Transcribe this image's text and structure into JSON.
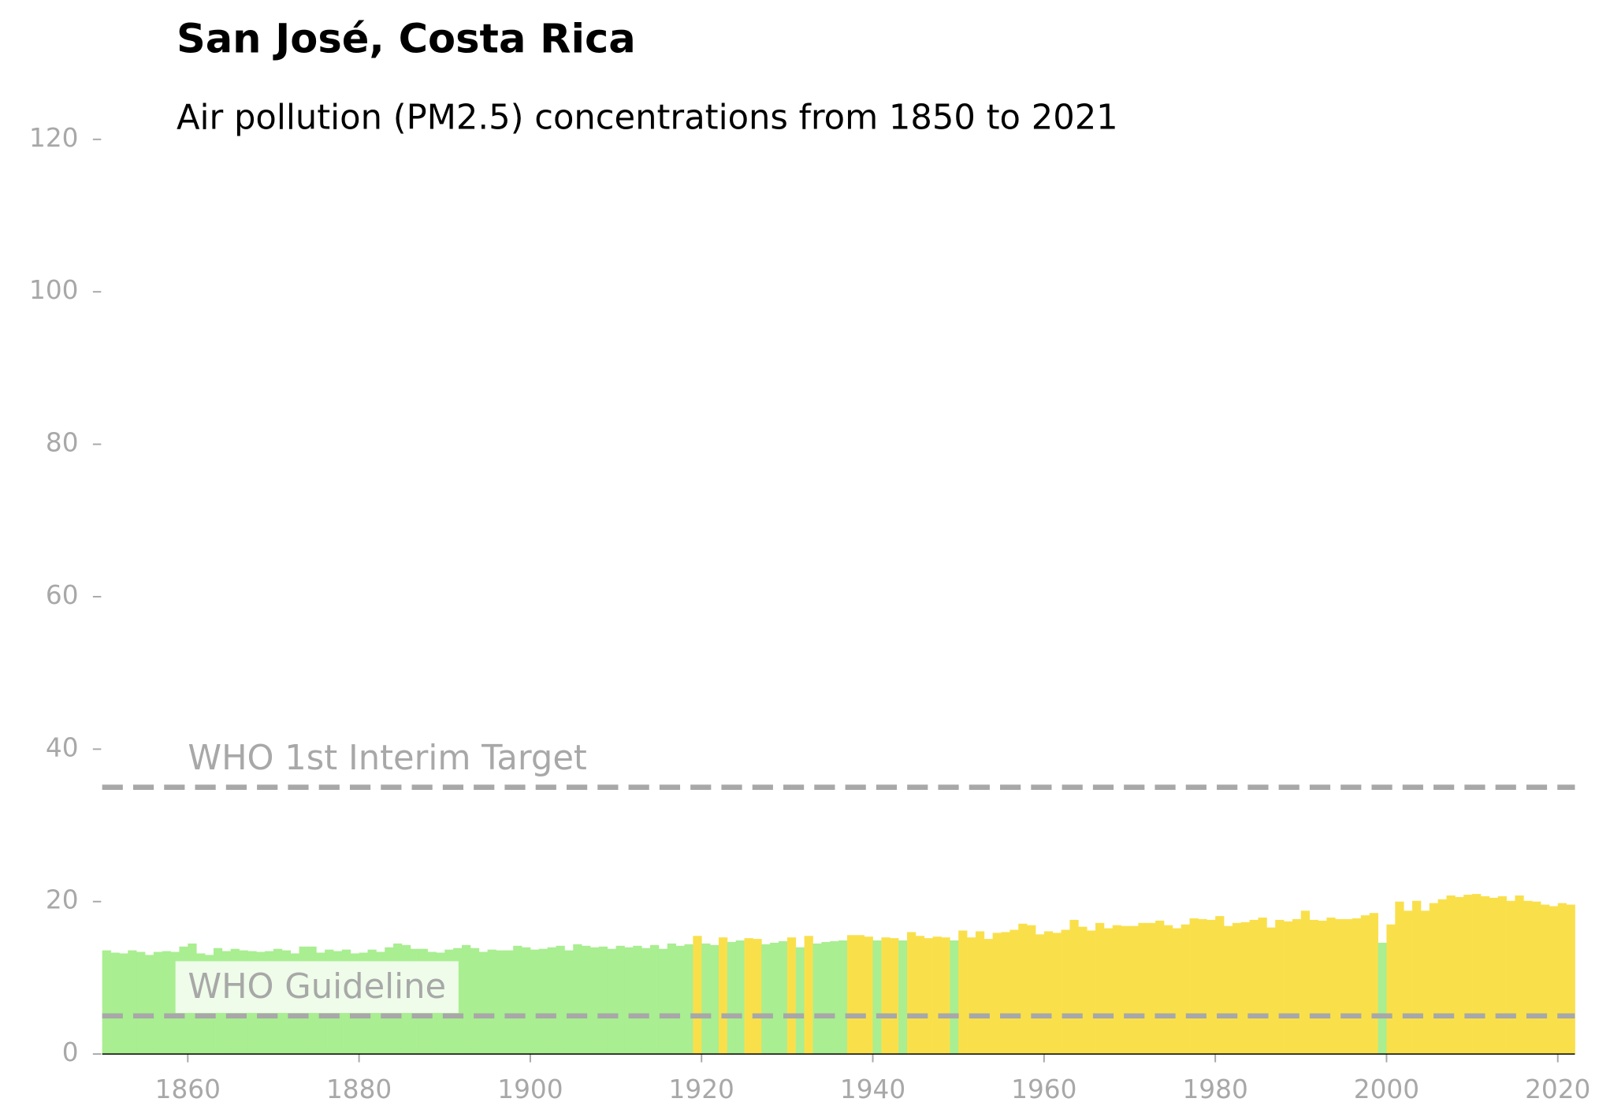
{
  "chart_data": {
    "type": "bar",
    "title": "San José, Costa Rica",
    "subtitle": "Air pollution (PM2.5) concentrations from 1850 to 2021",
    "x": [
      1850,
      1851,
      1852,
      1853,
      1854,
      1855,
      1856,
      1857,
      1858,
      1859,
      1860,
      1861,
      1862,
      1863,
      1864,
      1865,
      1866,
      1867,
      1868,
      1869,
      1870,
      1871,
      1872,
      1873,
      1874,
      1875,
      1876,
      1877,
      1878,
      1879,
      1880,
      1881,
      1882,
      1883,
      1884,
      1885,
      1886,
      1887,
      1888,
      1889,
      1890,
      1891,
      1892,
      1893,
      1894,
      1895,
      1896,
      1897,
      1898,
      1899,
      1900,
      1901,
      1902,
      1903,
      1904,
      1905,
      1906,
      1907,
      1908,
      1909,
      1910,
      1911,
      1912,
      1913,
      1914,
      1915,
      1916,
      1917,
      1918,
      1919,
      1920,
      1921,
      1922,
      1923,
      1924,
      1925,
      1926,
      1927,
      1928,
      1929,
      1930,
      1931,
      1932,
      1933,
      1934,
      1935,
      1936,
      1937,
      1938,
      1939,
      1940,
      1941,
      1942,
      1943,
      1944,
      1945,
      1946,
      1947,
      1948,
      1949,
      1950,
      1951,
      1952,
      1953,
      1954,
      1955,
      1956,
      1957,
      1958,
      1959,
      1960,
      1961,
      1962,
      1963,
      1964,
      1965,
      1966,
      1967,
      1968,
      1969,
      1970,
      1971,
      1972,
      1973,
      1974,
      1975,
      1976,
      1977,
      1978,
      1979,
      1980,
      1981,
      1982,
      1983,
      1984,
      1985,
      1986,
      1987,
      1988,
      1989,
      1990,
      1991,
      1992,
      1993,
      1994,
      1995,
      1996,
      1997,
      1998,
      1999,
      2000,
      2001,
      2002,
      2003,
      2004,
      2005,
      2006,
      2007,
      2008,
      2009,
      2010,
      2011,
      2012,
      2013,
      2014,
      2015,
      2016,
      2017,
      2018,
      2019,
      2020,
      2021
    ],
    "values": [
      13.6,
      13.3,
      13.2,
      13.6,
      13.4,
      13.0,
      13.4,
      13.5,
      13.4,
      14.1,
      14.5,
      13.2,
      13.0,
      13.9,
      13.5,
      13.8,
      13.6,
      13.5,
      13.4,
      13.5,
      13.8,
      13.6,
      13.2,
      14.1,
      14.1,
      13.3,
      13.7,
      13.5,
      13.7,
      13.2,
      13.3,
      13.7,
      13.4,
      14.0,
      14.5,
      14.3,
      13.8,
      13.8,
      13.4,
      13.3,
      13.7,
      13.9,
      14.3,
      13.9,
      13.4,
      13.7,
      13.6,
      13.6,
      14.2,
      14.0,
      13.7,
      13.8,
      14.0,
      14.2,
      13.6,
      14.4,
      14.2,
      14.0,
      14.1,
      13.8,
      14.2,
      14.0,
      14.2,
      13.9,
      14.3,
      13.8,
      14.5,
      14.2,
      14.4,
      15.5,
      14.5,
      14.3,
      15.3,
      14.7,
      14.9,
      15.2,
      15.1,
      14.4,
      14.6,
      14.8,
      15.3,
      14.0,
      15.5,
      14.5,
      14.7,
      14.8,
      14.9,
      15.6,
      15.6,
      15.4,
      14.9,
      15.3,
      15.2,
      14.9,
      16.0,
      15.5,
      15.2,
      15.4,
      15.3,
      14.9,
      16.2,
      15.3,
      16.1,
      15.1,
      15.9,
      16.0,
      16.3,
      17.1,
      16.9,
      15.7,
      16.1,
      15.9,
      16.3,
      17.6,
      16.7,
      16.2,
      17.2,
      16.5,
      16.9,
      16.8,
      16.8,
      17.2,
      17.2,
      17.5,
      16.9,
      16.5,
      17.0,
      17.8,
      17.7,
      17.6,
      18.1,
      16.8,
      17.2,
      17.3,
      17.6,
      17.9,
      16.6,
      17.6,
      17.4,
      17.7,
      18.8,
      17.6,
      17.5,
      17.9,
      17.7,
      17.7,
      17.8,
      18.2,
      18.5,
      14.6,
      17.0,
      20.0,
      18.8,
      20.1,
      18.8,
      19.8,
      20.3,
      20.8,
      20.6,
      20.9,
      21.0,
      20.7,
      20.5,
      20.7,
      20.1,
      20.8,
      20.1,
      20.0,
      19.6,
      19.4,
      19.8,
      19.6
    ],
    "colors": [
      "#a9ee91",
      "#f9e04b"
    ],
    "color_threshold": 15,
    "reference_lines": [
      {
        "value": 35,
        "label": "WHO 1st Interim Target"
      },
      {
        "value": 5,
        "label": "WHO Guideline"
      }
    ],
    "xlim": [
      1850,
      2022
    ],
    "xticks": [
      1860,
      1880,
      1900,
      1920,
      1940,
      1960,
      1980,
      2000,
      2020
    ],
    "ylim": [
      0,
      120
    ],
    "yticks": [
      0,
      20,
      40,
      60,
      80,
      100,
      120
    ]
  }
}
